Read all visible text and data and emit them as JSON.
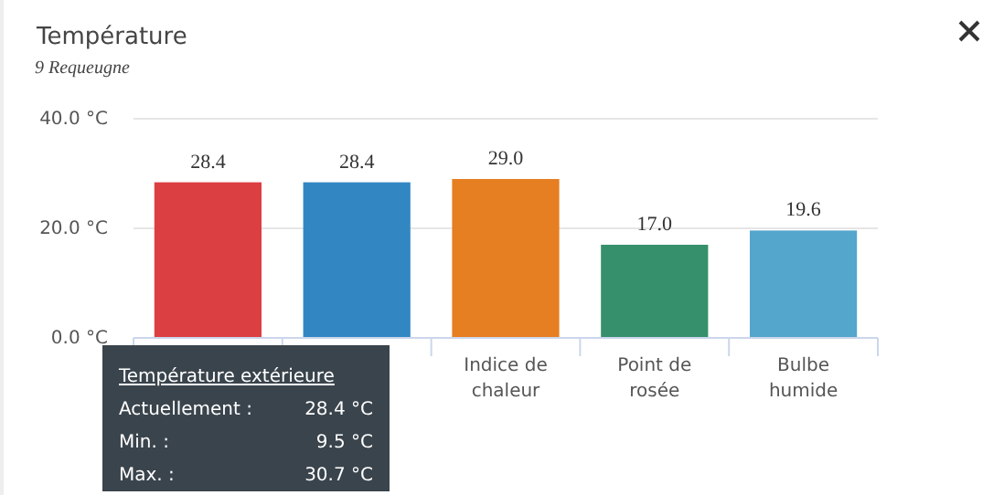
{
  "chart_data": {
    "type": "bar",
    "title": "Température",
    "subtitle": "9 Requeugne",
    "categories": [
      null,
      null,
      "Indice de chaleur",
      "Point de rosée",
      "Bulbe humide"
    ],
    "values": [
      28.4,
      28.4,
      29.0,
      17.0,
      19.6
    ],
    "colors": [
      "#dc3f42",
      "#3287c3",
      "#e67e22",
      "#36906c",
      "#54a6cc"
    ],
    "ylim": [
      0,
      40
    ],
    "yticks": [
      {
        "value": 0,
        "label": "0.0 °C"
      },
      {
        "value": 20,
        "label": "20.0 °C"
      },
      {
        "value": 40,
        "label": "40.0 °C"
      }
    ],
    "grid": "y",
    "value_labels": [
      "28.4",
      "28.4",
      "29.0",
      "17.0",
      "19.6"
    ],
    "annotations": [
      "Température extérieure",
      "Actuellement :",
      "28.4 °C",
      "Min. :",
      "9.5 °C",
      "Max. :",
      "30.7 °C"
    ]
  }
}
